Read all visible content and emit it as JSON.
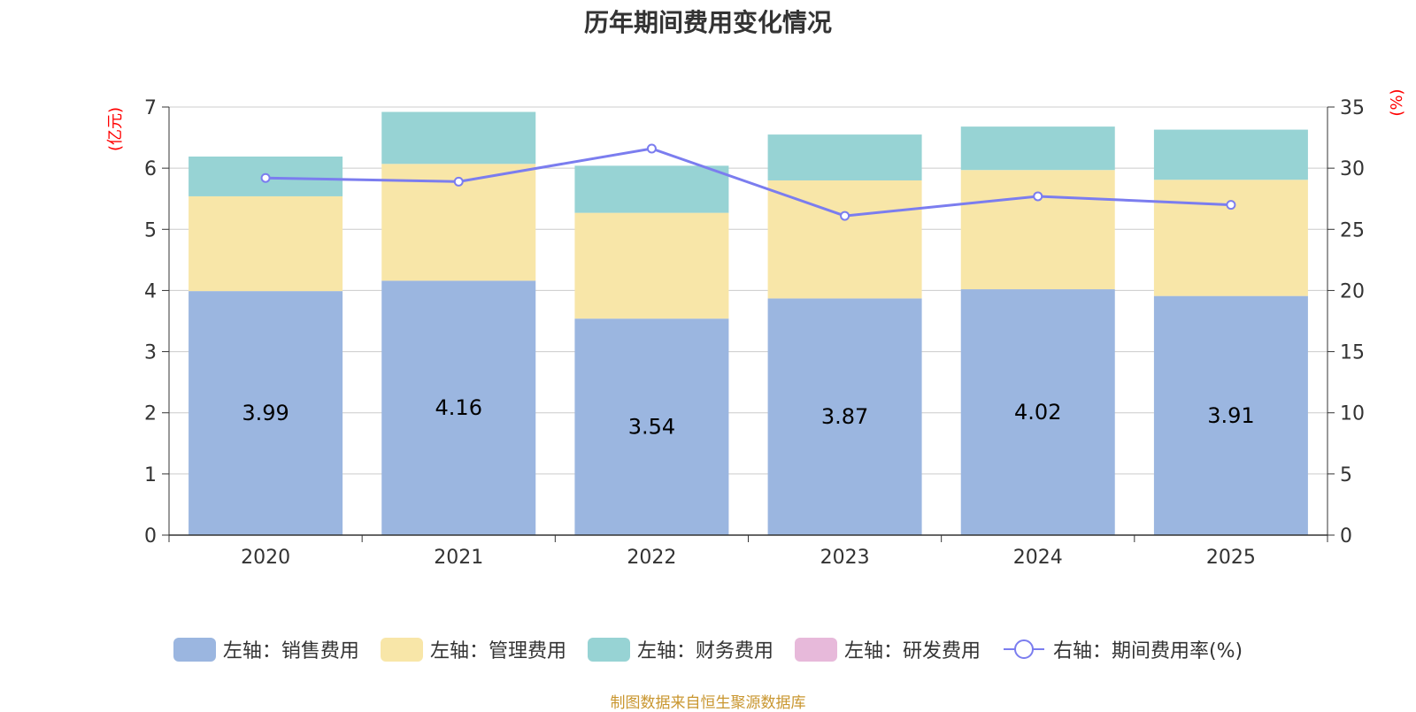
{
  "chart_data": {
    "type": "bar",
    "stacked": true,
    "title": "历年期间费用变化情况",
    "categories": [
      "2020",
      "2021",
      "2022",
      "2023",
      "2024",
      "2025"
    ],
    "series": [
      {
        "name": "左轴：销售费用",
        "axis": "left",
        "color": "#9bb6e0",
        "values": [
          3.99,
          4.16,
          3.54,
          3.87,
          4.02,
          3.91
        ],
        "labels": [
          "3.99",
          "4.16",
          "3.54",
          "3.87",
          "4.02",
          "3.91"
        ]
      },
      {
        "name": "左轴：管理费用",
        "axis": "left",
        "color": "#f8e6a8",
        "values": [
          1.55,
          1.91,
          1.73,
          1.93,
          1.95,
          1.9
        ]
      },
      {
        "name": "左轴：财务费用",
        "axis": "left",
        "color": "#97d3d4",
        "values": [
          0.65,
          0.85,
          0.77,
          0.75,
          0.71,
          0.82
        ]
      },
      {
        "name": "左轴：研发费用",
        "axis": "left",
        "color": "#e7b9da",
        "values": [
          0,
          0,
          0,
          0,
          0,
          0
        ]
      }
    ],
    "line_series": {
      "name": "右轴：期间费用率(%)",
      "axis": "right",
      "type": "line",
      "color": "#7b7def",
      "values": [
        29.2,
        28.9,
        31.6,
        26.1,
        27.7,
        27.0
      ]
    },
    "left_axis": {
      "label": "(亿元)",
      "min": 0,
      "max": 7,
      "ticks": [
        "0",
        "1",
        "2",
        "3",
        "4",
        "5",
        "6",
        "7"
      ]
    },
    "right_axis": {
      "label": "(%)",
      "min": 0,
      "max": 35,
      "ticks": [
        "0",
        "5",
        "10",
        "15",
        "20",
        "25",
        "30",
        "35"
      ]
    },
    "grid": true,
    "legend_position": "bottom"
  },
  "source_text": "制图数据来自恒生聚源数据库"
}
